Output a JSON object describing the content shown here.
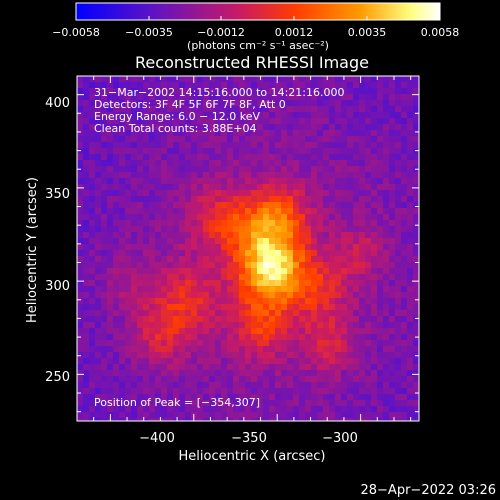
{
  "chart_data": {
    "type": "heatmap",
    "title": "Reconstructed RHESSI Image",
    "xlabel": "Heliocentric X (arcsec)",
    "ylabel": "Heliocentric Y (arcsec)",
    "xlim": [
      -470,
      -265
    ],
    "ylim": [
      225,
      410
    ],
    "x_ticks": [
      -400,
      -350,
      -300
    ],
    "y_ticks": [
      250,
      300,
      350,
      400
    ],
    "x_tick_labels": [
      "−400",
      "−350",
      "−300"
    ],
    "y_tick_labels": [
      "250",
      "300",
      "350",
      "400"
    ],
    "peak": {
      "x": -354,
      "y": 307
    },
    "colorbar": {
      "range": [
        -0.0058,
        0.0058
      ],
      "tick_labels": [
        "−0.0058",
        "−0.0035",
        "−0.0012",
        "0.0012",
        "0.0035",
        "0.0058"
      ],
      "units": "(photons cm⁻² s⁻¹ asec⁻²)",
      "colors": [
        "#0000ff",
        "#5a12c8",
        "#c81b63",
        "#ff3c00",
        "#ff9a00",
        "#ffff80",
        "#ffffff"
      ]
    },
    "annotations": [
      "31−Mar−2002 14:15:16.000 to 14:21:16.000",
      "Detectors: 3F 4F 5F 6F 7F 8F, Att 0",
      "Energy Range: 6.0 − 12.0 keV",
      "Clean     Total counts: 3.88E+04",
      "Position of Peak = [−354,307]"
    ],
    "footer": "28−Apr−2022 03:26",
    "grid": false,
    "legend": "none"
  }
}
